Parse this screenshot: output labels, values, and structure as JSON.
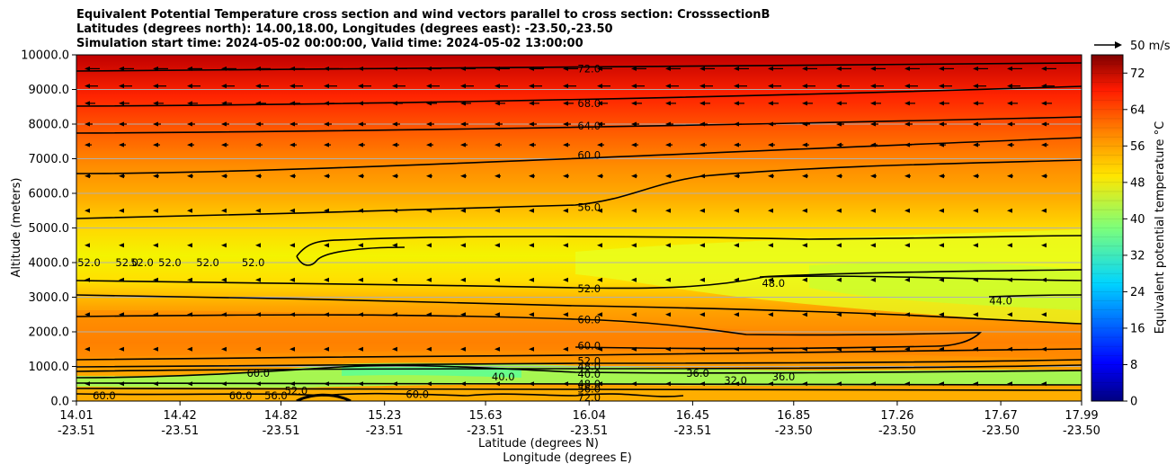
{
  "chart_data": {
    "type": "heatmap",
    "title_lines": [
      "Equivalent Potential Temperature cross section and wind vectors parallel to cross section: CrosssectionB",
      "Latitudes (degrees north): 14.00,18.00, Longitudes (degrees east): -23.50,-23.50",
      "Simulation start time: 2024-05-02 00:00:00, Valid time: 2024-05-02 13:00:00"
    ],
    "ylabel": "Altitude (meters)",
    "xlabel_lines": [
      "Latitude (degrees N)",
      "Longitude (degrees E)"
    ],
    "ylim": [
      0,
      10000
    ],
    "yticks": [
      "0.0",
      "1000.0",
      "2000.0",
      "3000.0",
      "4000.0",
      "5000.0",
      "6000.0",
      "7000.0",
      "8000.0",
      "9000.0",
      "10000.0"
    ],
    "xticks": [
      {
        "lat": "14.01",
        "lon": "-23.51"
      },
      {
        "lat": "14.42",
        "lon": "-23.51"
      },
      {
        "lat": "14.82",
        "lon": "-23.51"
      },
      {
        "lat": "15.23",
        "lon": "-23.51"
      },
      {
        "lat": "15.63",
        "lon": "-23.51"
      },
      {
        "lat": "16.04",
        "lon": "-23.51"
      },
      {
        "lat": "16.45",
        "lon": "-23.51"
      },
      {
        "lat": "16.85",
        "lon": "-23.50"
      },
      {
        "lat": "17.26",
        "lon": "-23.50"
      },
      {
        "lat": "17.67",
        "lon": "-23.50"
      },
      {
        "lat": "17.99",
        "lon": "-23.50"
      }
    ],
    "grid": true,
    "colorbar": {
      "label": "Equivalent potential temperature $^\\circ$C",
      "label_text": "Equivalent potential temperature °C",
      "min": 0,
      "max": 76,
      "ticks": [
        "0",
        "8",
        "16",
        "24",
        "32",
        "40",
        "48",
        "56",
        "64",
        "72"
      ],
      "colormap": "jet"
    },
    "wind_legend": "50 m/s",
    "contour_labels": [
      {
        "text": "72.0",
        "lat": 16.04,
        "alt": 9600
      },
      {
        "text": "68.0",
        "lat": 16.04,
        "alt": 8600
      },
      {
        "text": "64.0",
        "lat": 16.04,
        "alt": 7950
      },
      {
        "text": "60.0",
        "lat": 16.04,
        "alt": 7100
      },
      {
        "text": "56.0",
        "lat": 16.04,
        "alt": 5600
      },
      {
        "text": "52.0",
        "lat": 16.04,
        "alt": 3250
      },
      {
        "text": "60.0",
        "lat": 16.04,
        "alt": 2350
      },
      {
        "text": "60.0",
        "lat": 16.04,
        "alt": 1600
      },
      {
        "text": "52.0",
        "lat": 16.04,
        "alt": 1150
      },
      {
        "text": "48.0",
        "lat": 16.04,
        "alt": 1000
      },
      {
        "text": "40.0",
        "lat": 16.04,
        "alt": 780
      },
      {
        "text": "48.0",
        "lat": 16.04,
        "alt": 500
      },
      {
        "text": "56.0",
        "lat": 16.04,
        "alt": 350
      },
      {
        "text": "52.0",
        "lat": 14.06,
        "alt": 4000
      },
      {
        "text": "52.0",
        "lat": 14.21,
        "alt": 4000
      },
      {
        "text": "52.0",
        "lat": 14.27,
        "alt": 4000
      },
      {
        "text": "52.0",
        "lat": 14.38,
        "alt": 4000
      },
      {
        "text": "52.0",
        "lat": 14.53,
        "alt": 4000
      },
      {
        "text": "52.0",
        "lat": 14.71,
        "alt": 4000
      },
      {
        "text": "48.0",
        "lat": 16.77,
        "alt": 3400
      },
      {
        "text": "44.0",
        "lat": 17.67,
        "alt": 2900
      },
      {
        "text": "36.0",
        "lat": 16.81,
        "alt": 700
      },
      {
        "text": "36.0",
        "lat": 16.47,
        "alt": 800
      },
      {
        "text": "32.0",
        "lat": 16.62,
        "alt": 600
      },
      {
        "text": "60.0",
        "lat": 14.73,
        "alt": 800
      },
      {
        "text": "60.0",
        "lat": 14.12,
        "alt": 150
      },
      {
        "text": "60.0",
        "lat": 14.66,
        "alt": 150
      },
      {
        "text": "56.0",
        "lat": 14.8,
        "alt": 150
      },
      {
        "text": "52.0",
        "lat": 14.88,
        "alt": 300
      },
      {
        "text": "40.0",
        "lat": 15.7,
        "alt": 700
      },
      {
        "text": "60.0",
        "lat": 15.36,
        "alt": 200
      },
      {
        "text": "72.0",
        "lat": 16.04,
        "alt": 100
      }
    ],
    "contour_lines_alt_m": [
      {
        "level": "72.0",
        "left": 9250,
        "right": 9800
      },
      {
        "level": "68.0",
        "left": 8450,
        "right": 9100
      },
      {
        "level": "64.0",
        "left": 7700,
        "right": 8400
      },
      {
        "level": "60.0",
        "left": 6550,
        "right": 7600
      },
      {
        "level": "56.0",
        "left": 5250,
        "right": 6900
      },
      {
        "level": "52.0",
        "left": 3550,
        "right": 4500
      },
      {
        "level": "56.0",
        "left": 3050,
        "right": 2300
      },
      {
        "level": "60.0",
        "left": 2500,
        "right": 2300
      },
      {
        "level": "60.0",
        "left": 1150,
        "right": 1500
      }
    ]
  }
}
